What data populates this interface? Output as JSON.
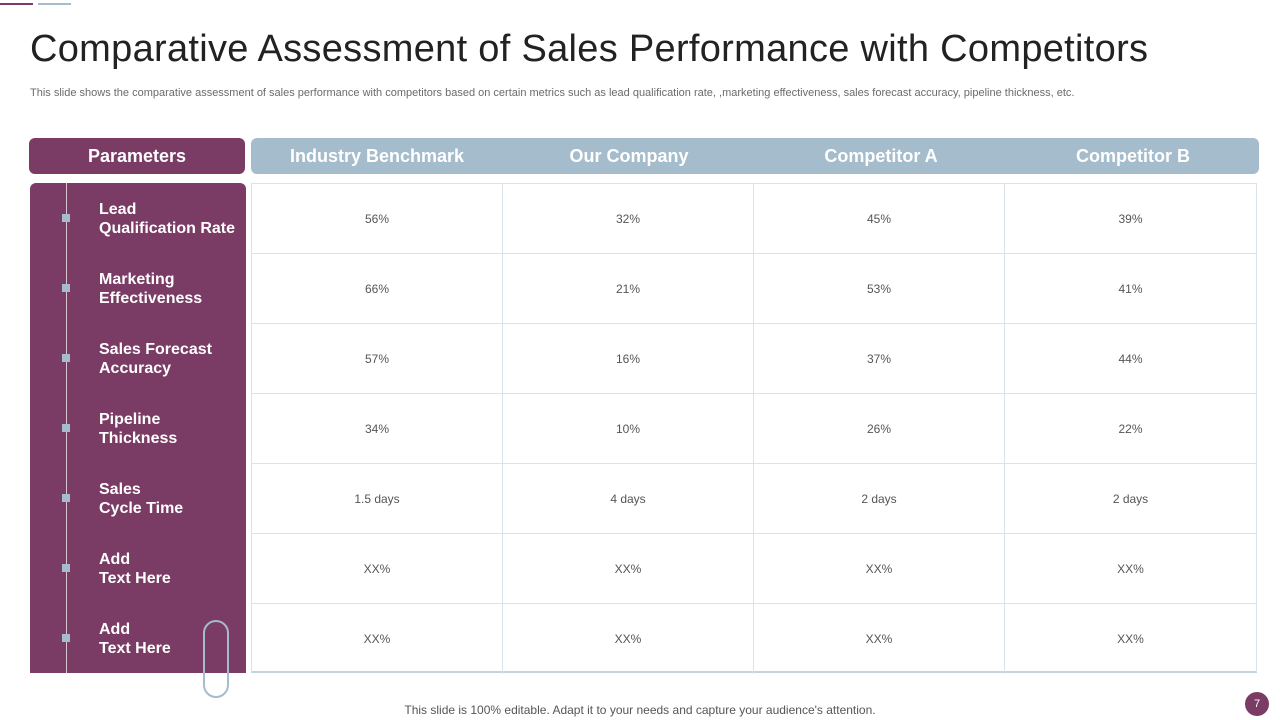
{
  "slide": {
    "title": "Comparative Assessment of Sales Performance with Competitors",
    "subtitle": "This slide shows the comparative assessment of sales performance with competitors based on certain metrics such as lead qualification rate, ,marketing effectiveness, sales forecast accuracy, pipeline thickness, etc.",
    "footer": "This slide is 100% editable. Adapt it to your needs and capture your audience's attention.",
    "page_number": "7"
  },
  "colors": {
    "primary": "#7a3b64",
    "secondary": "#a4bccb"
  },
  "table": {
    "parameters_header": "Parameters",
    "columns": [
      "Industry Benchmark",
      "Our Company",
      "Competitor A",
      "Competitor B"
    ],
    "rows": [
      {
        "label_line1": "Lead",
        "label_line2": "Qualification Rate",
        "values": [
          "56%",
          "32%",
          "45%",
          "39%"
        ]
      },
      {
        "label_line1": "Marketing",
        "label_line2": "Effectiveness",
        "values": [
          "66%",
          "21%",
          "53%",
          "41%"
        ]
      },
      {
        "label_line1": "Sales Forecast",
        "label_line2": "Accuracy",
        "values": [
          "57%",
          "16%",
          "37%",
          "44%"
        ]
      },
      {
        "label_line1": "Pipeline",
        "label_line2": "Thickness",
        "values": [
          "34%",
          "10%",
          "26%",
          "22%"
        ]
      },
      {
        "label_line1": "Sales",
        "label_line2": "Cycle Time",
        "values": [
          "1.5 days",
          "4 days",
          "2 days",
          "2 days"
        ]
      },
      {
        "label_line1": "Add",
        "label_line2": "Text Here",
        "values": [
          "XX%",
          "XX%",
          "XX%",
          "XX%"
        ]
      },
      {
        "label_line1": "Add",
        "label_line2": "Text Here",
        "values": [
          "XX%",
          "XX%",
          "XX%",
          "XX%"
        ]
      }
    ]
  }
}
